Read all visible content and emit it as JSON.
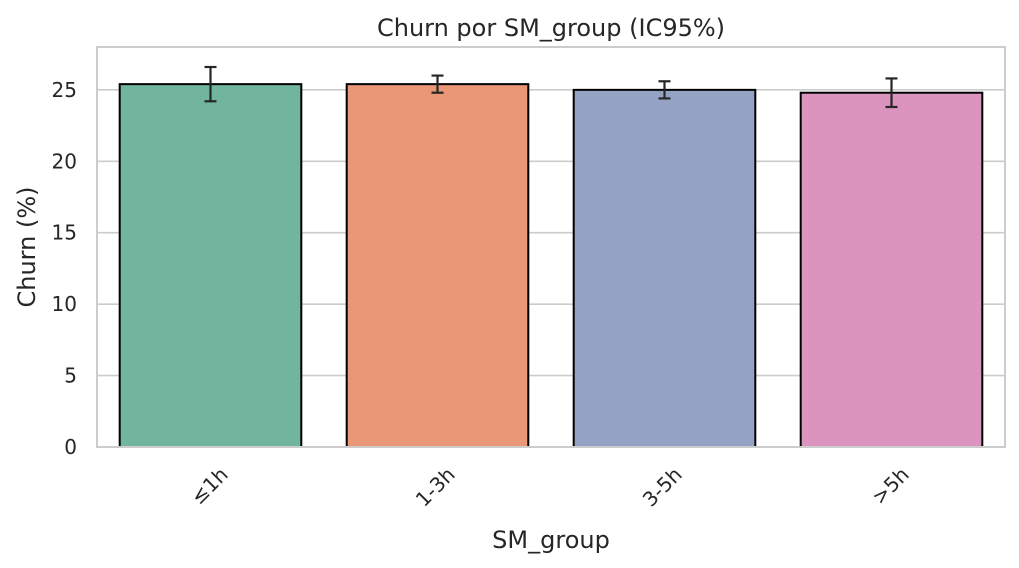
{
  "chart_data": {
    "type": "bar",
    "title": "Churn por SM_group (IC95%)",
    "xlabel": "SM_group",
    "ylabel": "Churn (%)",
    "ylim": [
      0,
      28
    ],
    "yticks": [
      0,
      5,
      10,
      15,
      20,
      25
    ],
    "grid": "y",
    "categories": [
      "≤1h",
      "1-3h",
      "3-5h",
      ">5h"
    ],
    "values": [
      25.4,
      25.4,
      25.0,
      24.8
    ],
    "ci_low": [
      24.2,
      24.8,
      24.4,
      23.8
    ],
    "ci_high": [
      26.6,
      26.0,
      25.6,
      25.8
    ],
    "colors": [
      "#72b59f",
      "#e99776",
      "#94a3c3",
      "#db94bd"
    ],
    "edge_color": "#000000",
    "grid_color": "#cccccc"
  }
}
